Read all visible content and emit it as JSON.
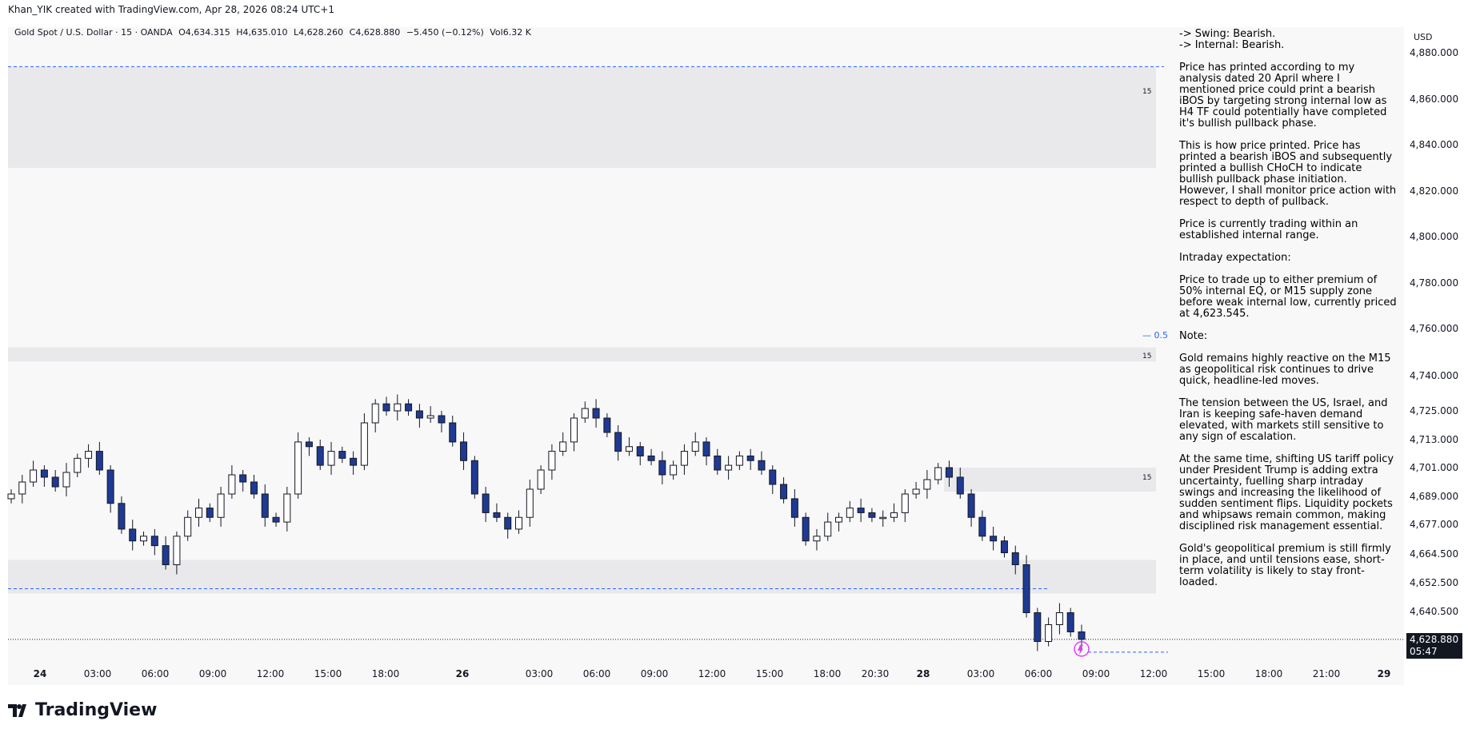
{
  "header": {
    "credit": "Khan_YIK created with TradingView.com, Apr 28, 2026 08:24 UTC+1"
  },
  "ohlc": {
    "symbol": "Gold Spot / U.S. Dollar · 15 · OANDA",
    "open": "O4,634.315",
    "high": "H4,635.010",
    "low": "L4,628.260",
    "close": "C4,628.880",
    "change": "−5.450 (−0.12%)",
    "volume": "Vol6.32 K"
  },
  "price_axis": {
    "currency": "USD",
    "labels": [
      "4,880.000",
      "4,860.000",
      "4,840.000",
      "4,820.000",
      "4,800.000",
      "4,780.000",
      "4,760.000",
      "4,740.000",
      "4,725.000",
      "4,713.000",
      "4,701.000",
      "4,689.000",
      "4,677.000",
      "4,664.500",
      "4,652.500",
      "4,640.500"
    ],
    "current_price": "4,628.880",
    "countdown": "05:47"
  },
  "time_axis": {
    "labels": [
      "24",
      "03:00",
      "06:00",
      "09:00",
      "12:00",
      "15:00",
      "18:00",
      "26",
      "03:00",
      "06:00",
      "09:00",
      "12:00",
      "15:00",
      "18:00",
      "20:30",
      "28",
      "03:00",
      "06:00",
      "09:00",
      "12:00",
      "15:00",
      "18:00",
      "21:00",
      "29"
    ],
    "bold_labels": [
      "24",
      "26",
      "28",
      "29"
    ]
  },
  "zones": {
    "label": "15",
    "eq_label": "0.5"
  },
  "analysis": {
    "lines": [
      "-> Swing: Bearish.",
      "-> Internal: Bearish."
    ],
    "paragraphs": [
      "Price has printed according to my analysis dated 20 April where I mentioned price could print a bearish iBOS by targeting strong internal low as H4 TF could potentially have completed it's bullish pullback phase.",
      "This is how price printed.  Price has printed a bearish iBOS and subsequently printed a bullish CHoCH to indicate bullish pullback phase initiation. However,  I shall monitor price action with respect to depth of pullback.",
      "Price is currently trading within an established internal range.",
      "Intraday expectation:",
      "Price to trade up to either premium of 50% internal EQ, or M15 supply zone before weak internal low, currently priced at 4,623.545.",
      "Note:",
      "Gold remains highly reactive on the M15 as geopolitical risk continues to drive quick, headline-led moves.",
      "The tension between the US, Israel, and Iran is keeping safe-haven demand elevated, with markets still sensitive to any sign of escalation.",
      "At the same time, shifting US tariff policy under President Trump is adding extra uncertainty, fuelling sharp intraday swings and increasing the likelihood of sudden sentiment flips. Liquidity pockets and whipsaws remain common, making disciplined risk management essential.",
      "Gold's geopolitical premium is still firmly in place, and until tensions ease, short-term volatility is likely to stay front-loaded."
    ]
  },
  "brand": {
    "name": "TradingView"
  },
  "colors": {
    "up_candle": "#ffffff",
    "down_candle": "#1f3a93",
    "wick": "#131722",
    "zone_fill": "#e9e9eb",
    "dashed_line": "#2962ff"
  },
  "chart_data": {
    "type": "candlestick",
    "symbol": "XAUUSD",
    "timeframe": "15",
    "ylim": [
      4620,
      4890
    ],
    "price_levels": {
      "swing_high_dashed": 4886,
      "eq_50": 4758,
      "weak_internal_low": 4623.545,
      "dashed_low": 4650
    },
    "supply_zones": [
      {
        "top": 4886,
        "bottom": 4830
      },
      {
        "top": 4752,
        "bottom": 4746
      },
      {
        "top": 4701,
        "bottom": 4691
      },
      {
        "top": 4662,
        "bottom": 4648
      }
    ],
    "close_path": [
      4690,
      4695,
      4700,
      4697,
      4693,
      4699,
      4705,
      4708,
      4700,
      4686,
      4675,
      4670,
      4672,
      4668,
      4660,
      4672,
      4680,
      4684,
      4680,
      4690,
      4698,
      4695,
      4690,
      4680,
      4678,
      4690,
      4712,
      4710,
      4702,
      4708,
      4705,
      4702,
      4720,
      4728,
      4725,
      4728,
      4725,
      4722,
      4723,
      4720,
      4712,
      4704,
      4690,
      4682,
      4680,
      4675,
      4680,
      4692,
      4700,
      4708,
      4712,
      4722,
      4726,
      4722,
      4716,
      4708,
      4710,
      4706,
      4704,
      4698,
      4702,
      4708,
      4712,
      4706,
      4700,
      4702,
      4706,
      4704,
      4700,
      4694,
      4688,
      4680,
      4670,
      4672,
      4678,
      4680,
      4684,
      4682,
      4680,
      4680,
      4682,
      4690,
      4692,
      4696,
      4701,
      4697,
      4690,
      4680,
      4672,
      4670,
      4665,
      4660,
      4640,
      4628,
      4635,
      4640,
      4632,
      4628.88
    ],
    "current_price": 4628.88
  }
}
